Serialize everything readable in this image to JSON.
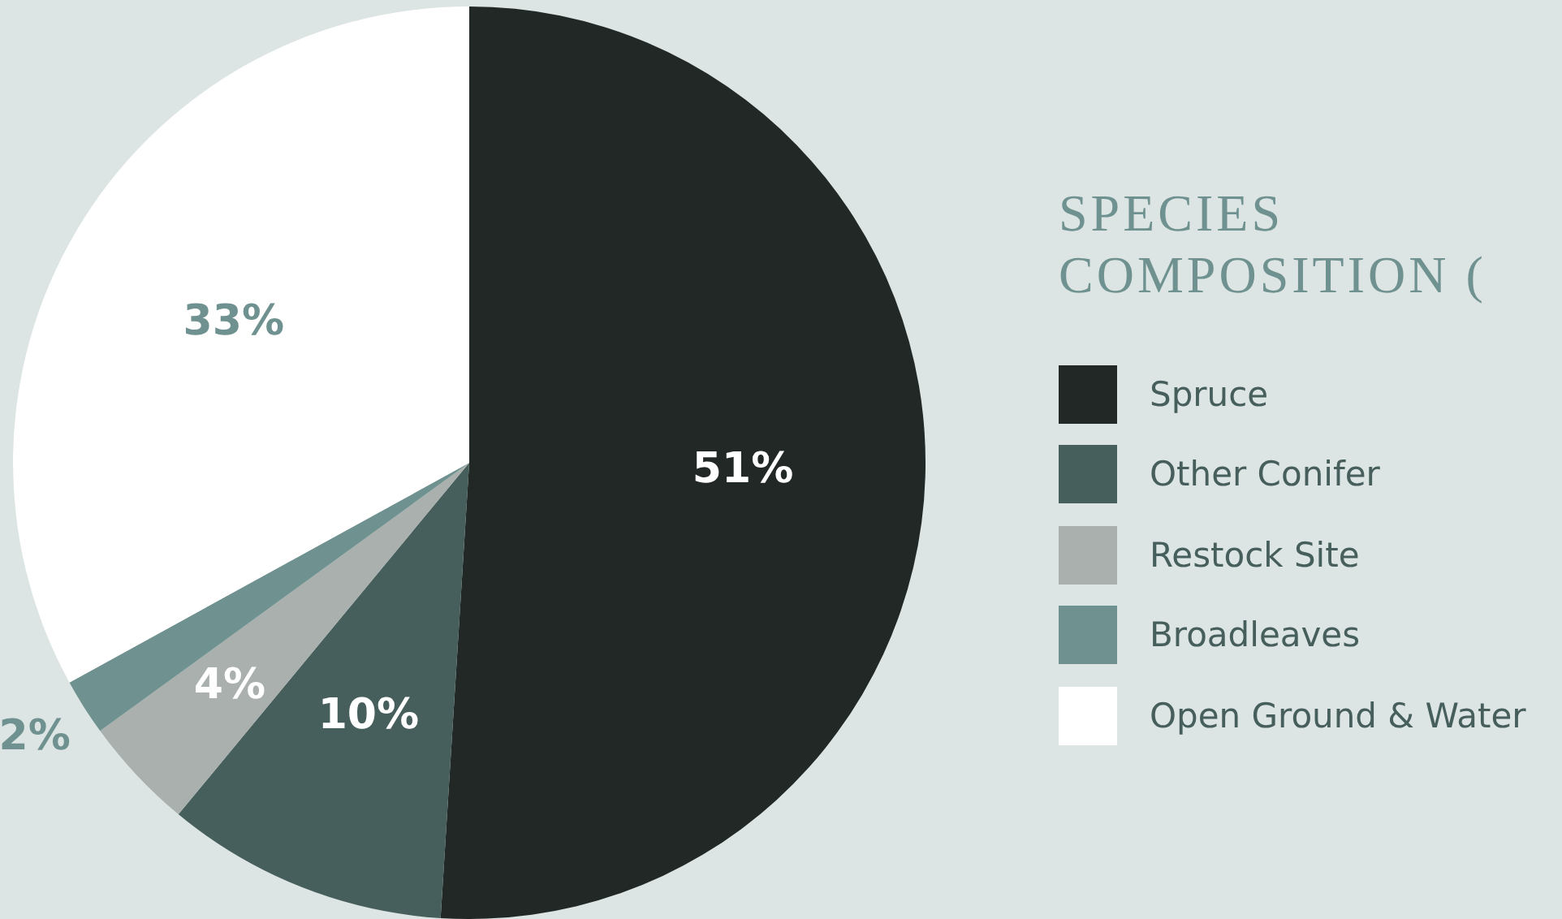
{
  "chart_data": {
    "type": "pie",
    "title": "SPECIES COMPOSITION (",
    "categories": [
      "Spruce",
      "Other Conifer",
      "Restock Site",
      "Broadleaves",
      "Open Ground & Water"
    ],
    "values": [
      51,
      10,
      4,
      2,
      33
    ],
    "colors": [
      "#212825",
      "#475f5c",
      "#a9b0ad",
      "#6f9290",
      "#ffffff"
    ],
    "value_labels": [
      "51%",
      "10%",
      "4%",
      "2%",
      "33%"
    ],
    "legend": "right"
  }
}
